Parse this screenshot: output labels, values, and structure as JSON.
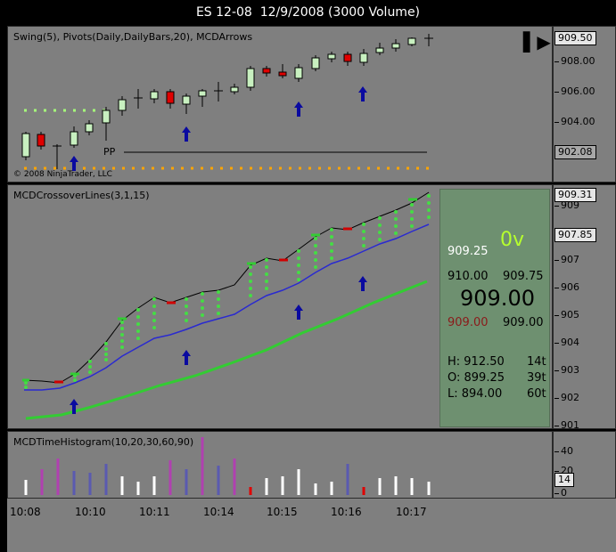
{
  "window": {
    "title": "ES 12-08  12/9/2008 (3000 Volume)"
  },
  "panel1": {
    "title": "Swing(5), Pivots(Daily,DailyBars,20), MCDArrows",
    "pivot_label": "PP",
    "copyright": "© 2008 NinjaTrader, LLC",
    "price_labels": [
      "908.00",
      "906.00",
      "904.00"
    ],
    "last_price": "909.50",
    "pivot_price": "902.08",
    "play_icon": "skip-forward-icon"
  },
  "panel2": {
    "title": "MCDCrossoverLines(3,1,15)",
    "price_labels": [
      "909",
      "908",
      "907",
      "906",
      "905",
      "904",
      "903",
      "902",
      "901"
    ],
    "last_price": "909.31",
    "line_price": "907.85",
    "dom": {
      "small_price": "909.25",
      "volume": "0v",
      "bid_left": "910.00",
      "bid_right": "909.75",
      "last": "909.00",
      "ask_left": "909.00",
      "ask_right": "909.00",
      "h_label": "H: 912.50",
      "h_ticks": "14t",
      "o_label": "O: 899.25",
      "o_ticks": "39t",
      "l_label": "L: 894.00",
      "l_ticks": "60t"
    }
  },
  "panel3": {
    "title": "MCDTimeHistogram(10,20,30,60,90)",
    "labels": [
      "40",
      "20",
      "0"
    ],
    "current": "14"
  },
  "xaxis": {
    "labels": [
      "10:08",
      "10:10",
      "10:11",
      "10:14",
      "10:15",
      "10:16",
      "10:17"
    ]
  },
  "colors": {
    "panel_bg": "#7f7f7f",
    "up_candle": "#c8f0c0",
    "down_candle": "#e00000",
    "arrow": "#0a0aa0",
    "green_line": "#33cc33",
    "dom_bg": "#6e9070",
    "volume_text": "#b6ff2e"
  }
}
